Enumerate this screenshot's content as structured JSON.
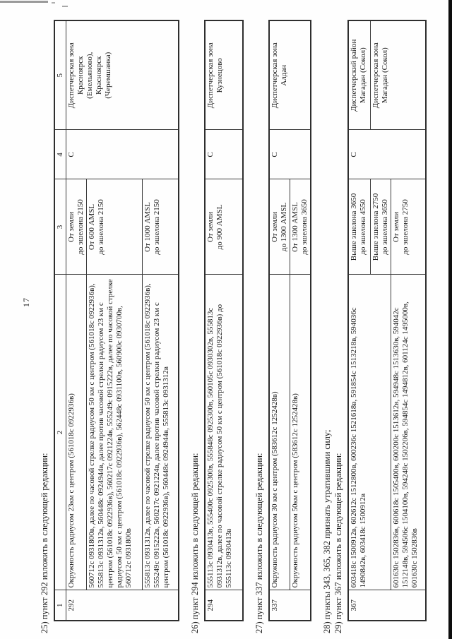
{
  "page": {
    "number": "17"
  },
  "colors": {
    "text": "#1b1b1b",
    "border": "#3a3a3a",
    "scan_edge": "#0d0d0d",
    "paper": "#fefefe"
  },
  "paragraphs": [
    "25) пункт 292 изложить в следующей редакции:",
    "26) пункт 294 изложить в следующей редакции:",
    "27) пункт 337 изложить в следующей редакции:",
    "28) пункты 343, 365, 382 признать утратившими силу;",
    "29) пункт 367 изложить в следующей редакции:"
  ],
  "column_headers": [
    "1",
    "2",
    "3",
    "4",
    "5"
  ],
  "tables": {
    "t292": {
      "num": "292",
      "cls": "С",
      "zone": "Диспетчерская зона\nКрасноярск\n(Емельяново),\nКрасноярск\n(Черемшанка)",
      "rows": [
        {
          "boundary": "Окружность радиусом 23км с центром (561018с 0922936в)",
          "limits": "От земли\nдо эшелона 2150"
        },
        {
          "boundary": "560712с 0931800в, далее по часовой стрелке радиусом 50 км с центром (561018с 0922936в), 555813с 0931312в, 560448с 0924944в, далее против часовой стрелки радиусом 23 км с центром (561018с 0922936в), 560217с 0921224в, 555249с 0915222в, далее по часовой стрелке радиусом 50 км с центром (561018с 0922936в), 562448с 0931100в, 560900с 0930700в, 560712с 0931800в",
          "limits": "От 600 AMSL\nдо эшелона 2150"
        },
        {
          "boundary": "555813с 0931312в, далее по часовой стрелке радиусом 50 км с центром (561018с 0922936в), 555249с 0915222в, 560217с 0921224в, далее против часовой стрелки радиусом 23 км с центром (561018с 0922936в), 560448с 0924944в, 555813с 0931312в",
          "limits": "От 1000 AMSL\nдо эшелона 2150"
        }
      ]
    },
    "t294": {
      "num": "294",
      "cls": "С",
      "zone": "Диспетчерская зона\nКузнецово",
      "rows": [
        {
          "boundary": "555113с 0930413в, 555400с 0925300в, 555848с 0925300в, 560105с 0930302в, 555813с 0931312в, далее по часовой стрелке радиусом 50 км с центром (561018с 0922936в) до 555113с 0930413в",
          "limits": "От земли\nдо 900 AMSL"
        }
      ]
    },
    "t337": {
      "num": "337",
      "cls": "С",
      "zone": "Диспетчерская зона\nАлдан",
      "rows": [
        {
          "boundary": "Окружность радиусом 30 км с центром (583612с 1252428в)",
          "limits": "От земли\nдо 1300 AMSL"
        },
        {
          "boundary": "Окружность радиусом 50км с центром (583612с 1252428в)",
          "limits": "От 1300 AMSL\nдо эшелона 3650"
        }
      ]
    },
    "t367": {
      "num": "367",
      "cls": "С",
      "zone_a": "Диспетчерский район\nМагадан (Сокол)",
      "zone_bc": "Диспетчерская зона\nМагадан (Сокол)",
      "rows": [
        {
          "boundary": "603418с 1500912в, 602612с 1512800в, 600236с 1521618в, 591854с 1513218в, 594036с 1490842в, 603418с 1500912в",
          "limits": "Выше эшелона 3650\nдо эшелона 4550"
        },
        {
          "limits": "Выше эшелона 2750\nдо эшелона 3650"
        },
        {
          "boundary": "601630с 1502836в, 600618с 1505400в, 600200с 1513612в, 594948с 1513630в, 594042с 1512148в, 594506с 1504100в, 594248с 1502206в, 594854с 1494812в, 601124с 1495000в, 601630с 1502836в",
          "limits": "От земли\nдо эшелона 2750"
        }
      ]
    }
  }
}
